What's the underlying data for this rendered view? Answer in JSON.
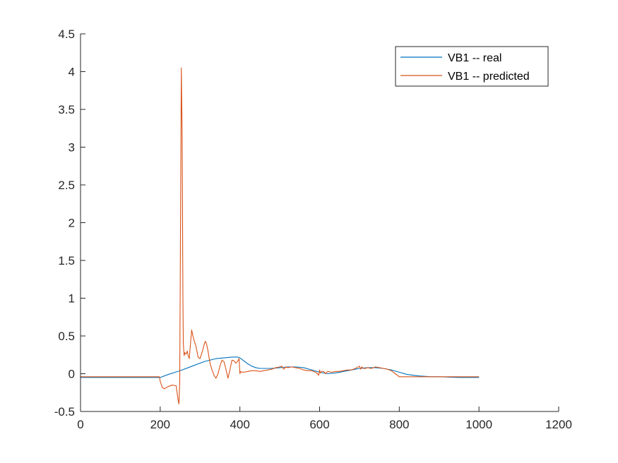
{
  "chart_data": {
    "type": "line",
    "title": "",
    "xlabel": "",
    "ylabel": "",
    "xlim": [
      0,
      1200
    ],
    "ylim": [
      -0.5,
      4.5
    ],
    "xticks": [
      0,
      200,
      400,
      600,
      800,
      1000,
      1200
    ],
    "yticks": [
      -0.5,
      0,
      0.5,
      1,
      1.5,
      2,
      2.5,
      3,
      3.5,
      4,
      4.5
    ],
    "xtick_labels": [
      "0",
      "200",
      "400",
      "600",
      "800",
      "1000",
      "1200"
    ],
    "ytick_labels": [
      "-0.5",
      "0",
      "0.5",
      "1",
      "1.5",
      "2",
      "2.5",
      "3",
      "3.5",
      "4",
      "4.5"
    ],
    "grid": false,
    "legend_position": "top-right",
    "series": [
      {
        "name": "VB1 -- real",
        "color": "#0072BD",
        "x": [
          0,
          200,
          220,
          250,
          280,
          310,
          340,
          360,
          380,
          395,
          400,
          410,
          420,
          430,
          440,
          450,
          460,
          480,
          500,
          520,
          540,
          560,
          580,
          600,
          620,
          640,
          660,
          680,
          700,
          720,
          740,
          760,
          780,
          800,
          820,
          850,
          880,
          900,
          950,
          1000
        ],
        "y": [
          -0.05,
          -0.05,
          -0.01,
          0.04,
          0.1,
          0.16,
          0.2,
          0.21,
          0.22,
          0.22,
          0.21,
          0.17,
          0.13,
          0.1,
          0.08,
          0.07,
          0.07,
          0.07,
          0.08,
          0.09,
          0.09,
          0.08,
          0.05,
          0.02,
          0.0,
          0.01,
          0.03,
          0.05,
          0.07,
          0.08,
          0.08,
          0.07,
          0.05,
          0.02,
          -0.01,
          -0.03,
          -0.04,
          -0.04,
          -0.05,
          -0.05
        ]
      },
      {
        "name": "VB1 -- predicted",
        "color": "#D95319",
        "x": [
          0,
          198,
          200,
          205,
          210,
          220,
          230,
          240,
          245,
          247,
          249,
          251,
          253,
          255,
          257,
          258,
          260,
          262,
          265,
          268,
          270,
          273,
          276,
          279,
          282,
          285,
          290,
          295,
          300,
          303,
          306,
          310,
          313,
          316,
          320,
          323,
          326,
          330,
          335,
          340,
          345,
          350,
          355,
          360,
          365,
          370,
          375,
          380,
          385,
          390,
          395,
          398,
          400,
          402,
          405,
          410,
          420,
          430,
          440,
          450,
          460,
          470,
          480,
          490,
          500,
          505,
          510,
          515,
          520,
          530,
          540,
          550,
          560,
          570,
          580,
          590,
          595,
          598,
          600,
          602,
          605,
          610,
          615,
          620,
          630,
          640,
          650,
          660,
          670,
          680,
          690,
          700,
          703,
          706,
          710,
          715,
          720,
          730,
          740,
          750,
          760,
          770,
          780,
          790,
          795,
          800,
          805,
          850,
          900,
          950,
          1000
        ],
        "y": [
          -0.04,
          -0.04,
          -0.1,
          -0.18,
          -0.2,
          -0.17,
          -0.15,
          -0.16,
          -0.35,
          -0.4,
          -0.1,
          2.0,
          4.05,
          3.2,
          1.0,
          0.4,
          0.24,
          0.28,
          0.26,
          0.3,
          0.24,
          0.2,
          0.4,
          0.58,
          0.5,
          0.44,
          0.36,
          0.22,
          0.2,
          0.25,
          0.3,
          0.38,
          0.43,
          0.4,
          0.3,
          0.2,
          0.12,
          0.05,
          -0.02,
          -0.06,
          0.0,
          0.1,
          0.18,
          0.16,
          0.06,
          -0.06,
          0.05,
          0.18,
          0.17,
          0.14,
          0.17,
          0.2,
          0.0,
          0.03,
          0.02,
          0.02,
          0.03,
          0.04,
          0.04,
          0.03,
          0.04,
          0.05,
          0.06,
          0.08,
          0.09,
          0.1,
          0.06,
          0.09,
          0.08,
          0.09,
          0.08,
          0.07,
          0.05,
          0.04,
          0.04,
          0.02,
          0.0,
          -0.02,
          0.05,
          0.01,
          0.03,
          0.03,
          0.0,
          0.03,
          0.02,
          0.03,
          0.03,
          0.04,
          0.05,
          0.05,
          0.07,
          0.1,
          0.06,
          0.09,
          0.07,
          0.07,
          0.08,
          0.07,
          0.09,
          0.08,
          0.07,
          0.06,
          0.04,
          0.0,
          -0.02,
          -0.04,
          -0.04,
          -0.04,
          -0.04,
          -0.04,
          -0.04
        ]
      }
    ]
  }
}
